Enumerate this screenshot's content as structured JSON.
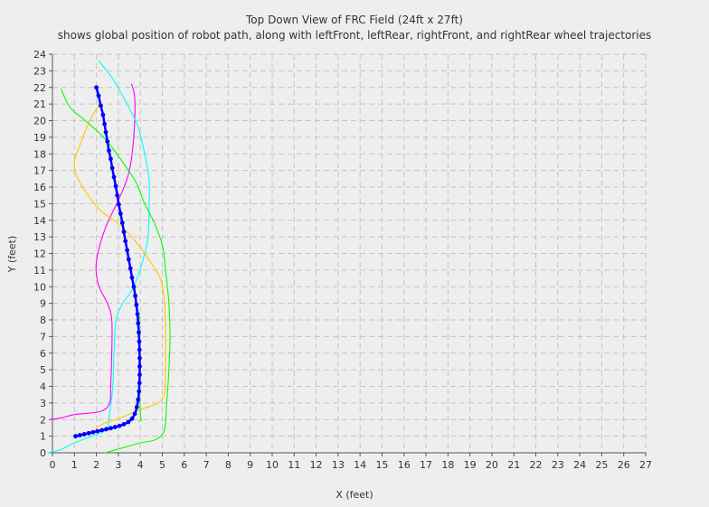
{
  "chart_data": {
    "type": "line",
    "title": "Top Down View of FRC Field (24ft x 27ft)",
    "subtitle": "shows global position of robot path, along with leftFront, leftRear, rightFront, and rightRear wheel trajectories",
    "xlabel": "X (feet)",
    "ylabel": "Y (feet)",
    "xlim": [
      0,
      27
    ],
    "ylim": [
      0,
      24
    ],
    "x_ticks": [
      0,
      1,
      2,
      3,
      4,
      5,
      6,
      7,
      8,
      9,
      10,
      11,
      12,
      13,
      14,
      15,
      16,
      17,
      18,
      19,
      20,
      21,
      22,
      23,
      24,
      25,
      26,
      27
    ],
    "y_ticks": [
      0,
      1,
      2,
      3,
      4,
      5,
      6,
      7,
      8,
      9,
      10,
      11,
      12,
      13,
      14,
      15,
      16,
      17,
      18,
      19,
      20,
      21,
      22,
      23,
      24
    ],
    "grid": true,
    "legend": "none",
    "colors": {
      "robot": "#0000ff",
      "cyan": "#00ffff",
      "magenta": "#ff00ff",
      "orange": "#ffc800",
      "green": "#00ff00",
      "background": "#eeeeee",
      "grid": "#c4c4c4"
    },
    "series": [
      {
        "color": "#ff00ff",
        "points": [
          [
            3.6,
            22.2
          ],
          [
            3.75,
            21.3
          ],
          [
            3.7,
            19
          ],
          [
            3.5,
            17
          ],
          [
            3.1,
            15.5
          ],
          [
            2.4,
            13.5
          ],
          [
            2.0,
            11.5
          ],
          [
            2.1,
            10.1
          ],
          [
            2.5,
            9.0
          ],
          [
            2.7,
            8.0
          ],
          [
            2.7,
            6.0
          ],
          [
            2.65,
            4.0
          ],
          [
            2.6,
            3.0
          ],
          [
            2.2,
            2.5
          ],
          [
            1.0,
            2.3
          ],
          [
            0.4,
            2.1
          ],
          [
            -0.1,
            2.0
          ]
        ]
      },
      {
        "color": "#00ffff",
        "points": [
          [
            2.1,
            23.6
          ],
          [
            2.7,
            22.6
          ],
          [
            3.4,
            21
          ],
          [
            3.9,
            19.6
          ],
          [
            4.2,
            18
          ],
          [
            4.4,
            16.5
          ],
          [
            4.4,
            15
          ],
          [
            4.35,
            13
          ],
          [
            4.1,
            11.5
          ],
          [
            3.7,
            10.0
          ],
          [
            3.2,
            9.0
          ],
          [
            2.9,
            8.0
          ],
          [
            2.8,
            6.0
          ],
          [
            2.75,
            4.0
          ],
          [
            2.6,
            2.4
          ],
          [
            2.5,
            1.5
          ],
          [
            2.2,
            1.2
          ],
          [
            1.0,
            0.6
          ],
          [
            0.4,
            0.2
          ],
          [
            -0.2,
            0.0
          ]
        ]
      },
      {
        "color": "#ffc800",
        "points": [
          [
            2.1,
            20.9
          ],
          [
            1.7,
            20.0
          ],
          [
            1.3,
            18.7
          ],
          [
            1.0,
            17.5
          ],
          [
            1.2,
            16.4
          ],
          [
            2.1,
            14.7
          ],
          [
            3.0,
            13.8
          ],
          [
            3.8,
            12.7
          ],
          [
            4.3,
            11.8
          ],
          [
            4.9,
            10.5
          ],
          [
            5.1,
            9.0
          ],
          [
            5.15,
            7.0
          ],
          [
            5.15,
            5.0
          ],
          [
            5.1,
            3.6
          ],
          [
            4.8,
            3.0
          ],
          [
            4.0,
            2.6
          ],
          [
            3.1,
            2.1
          ],
          [
            2.4,
            1.8
          ],
          [
            2.0,
            1.5
          ]
        ]
      },
      {
        "color": "#00ff00",
        "points": [
          [
            0.4,
            21.9
          ],
          [
            0.8,
            20.8
          ],
          [
            1.5,
            20.0
          ],
          [
            2.4,
            18.9
          ],
          [
            3.2,
            17.5
          ],
          [
            3.8,
            16.3
          ],
          [
            4.2,
            15.0
          ],
          [
            4.65,
            13.8
          ],
          [
            5.0,
            12.5
          ],
          [
            5.15,
            11.0
          ],
          [
            5.3,
            9.0
          ],
          [
            5.35,
            7.0
          ],
          [
            5.3,
            5.0
          ],
          [
            5.2,
            3.0
          ],
          [
            5.1,
            1.4
          ],
          [
            4.7,
            0.8
          ],
          [
            4.0,
            0.6
          ],
          [
            3.2,
            0.3
          ],
          [
            2.4,
            0.0
          ]
        ]
      },
      {
        "color": "#00ff00",
        "points": [
          [
            3.95,
            1.9
          ],
          [
            4.05,
            2.0
          ],
          [
            4.0,
            2.4
          ],
          [
            3.95,
            5.0
          ],
          [
            3.95,
            8.2
          ]
        ]
      },
      {
        "color": "#0000ff",
        "markers": true,
        "points": [
          [
            2.0,
            22.0
          ],
          [
            2.1,
            21.5
          ],
          [
            2.2,
            20.9
          ],
          [
            2.3,
            20.35
          ],
          [
            2.37,
            19.8
          ],
          [
            2.43,
            19.3
          ],
          [
            2.5,
            18.75
          ],
          [
            2.57,
            18.2
          ],
          [
            2.65,
            17.7
          ],
          [
            2.72,
            17.15
          ],
          [
            2.8,
            16.6
          ],
          [
            2.88,
            16.05
          ],
          [
            2.95,
            15.5
          ],
          [
            3.02,
            14.95
          ],
          [
            3.1,
            14.4
          ],
          [
            3.18,
            13.85
          ],
          [
            3.25,
            13.3
          ],
          [
            3.32,
            12.75
          ],
          [
            3.4,
            12.2
          ],
          [
            3.47,
            11.65
          ],
          [
            3.55,
            11.1
          ],
          [
            3.62,
            10.55
          ],
          [
            3.7,
            10.0
          ],
          [
            3.77,
            9.45
          ],
          [
            3.82,
            8.9
          ],
          [
            3.87,
            8.35
          ],
          [
            3.9,
            7.8
          ],
          [
            3.93,
            7.25
          ],
          [
            3.95,
            6.7
          ],
          [
            3.96,
            6.2
          ],
          [
            3.97,
            5.7
          ],
          [
            3.97,
            5.2
          ],
          [
            3.97,
            4.7
          ],
          [
            3.96,
            4.2
          ],
          [
            3.94,
            3.7
          ],
          [
            3.9,
            3.2
          ],
          [
            3.84,
            2.75
          ],
          [
            3.75,
            2.35
          ],
          [
            3.62,
            2.05
          ],
          [
            3.45,
            1.85
          ],
          [
            3.25,
            1.72
          ],
          [
            3.05,
            1.62
          ],
          [
            2.85,
            1.55
          ],
          [
            2.65,
            1.48
          ],
          [
            2.45,
            1.42
          ],
          [
            2.25,
            1.36
          ],
          [
            2.05,
            1.3
          ],
          [
            1.85,
            1.24
          ],
          [
            1.65,
            1.18
          ],
          [
            1.45,
            1.12
          ],
          [
            1.25,
            1.06
          ],
          [
            1.05,
            1.0
          ]
        ]
      }
    ]
  }
}
